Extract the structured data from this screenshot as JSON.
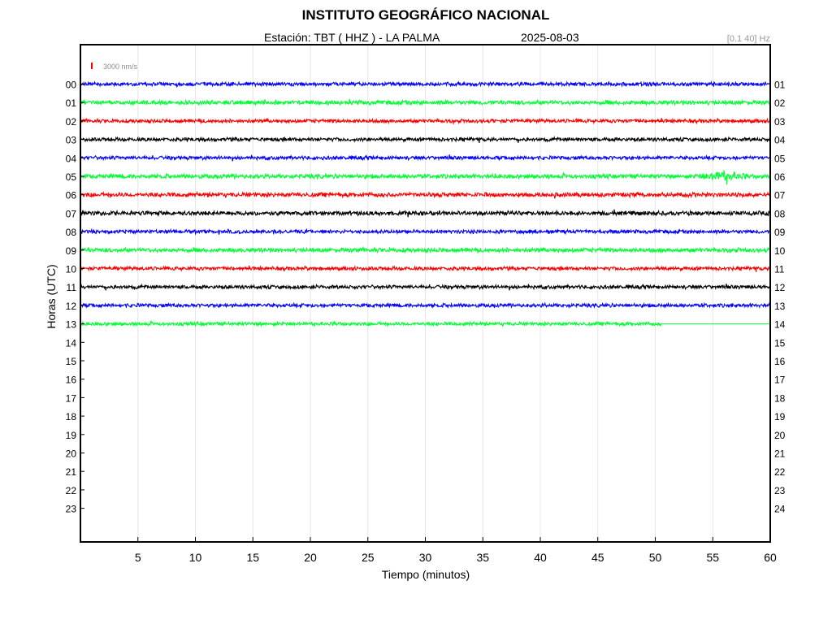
{
  "header": {
    "title": "INSTITUTO GEOGRÁFICO NACIONAL",
    "station": "Estación:  TBT ( HHZ ) - LA PALMA",
    "date": "2025-08-03",
    "filter": "[0.1 40] Hz"
  },
  "colors": {
    "blue": "#0000ff",
    "green": "#00ff33",
    "red": "#ff0000",
    "black": "#000000",
    "grid": "#e6e6e6",
    "scale_bar": "#ff0000"
  },
  "chart_data": {
    "type": "line",
    "chart_kind": "helicorder (seismogram, one trace per hour)",
    "xlabel": "Tiempo (minutos)",
    "ylabel": "Horas (UTC)",
    "xlim": [
      0,
      60
    ],
    "x_ticks": [
      5,
      10,
      15,
      20,
      25,
      30,
      35,
      40,
      45,
      50,
      55,
      60
    ],
    "grid": "vertical lines at each x tick",
    "scale_label": "3000 nm/s",
    "left_hour_labels": [
      "00",
      "01",
      "02",
      "03",
      "04",
      "05",
      "06",
      "07",
      "08",
      "09",
      "10",
      "11",
      "12",
      "13",
      "14",
      "15",
      "16",
      "17",
      "18",
      "19",
      "20",
      "21",
      "22",
      "23"
    ],
    "right_hour_labels": [
      "01",
      "02",
      "03",
      "04",
      "05",
      "06",
      "07",
      "08",
      "09",
      "10",
      "11",
      "12",
      "13",
      "14",
      "15",
      "16",
      "17",
      "18",
      "19",
      "20",
      "21",
      "22",
      "23",
      "24"
    ],
    "color_cycle": [
      "blue",
      "green",
      "red",
      "black"
    ],
    "traces": [
      {
        "hour": "00",
        "color": "blue",
        "amplitude": 2.5,
        "x_end": 60
      },
      {
        "hour": "01",
        "color": "green",
        "amplitude": 3.0,
        "x_end": 60
      },
      {
        "hour": "02",
        "color": "red",
        "amplitude": 2.5,
        "x_end": 60
      },
      {
        "hour": "03",
        "color": "black",
        "amplitude": 2.5,
        "x_end": 60
      },
      {
        "hour": "04",
        "color": "blue",
        "amplitude": 2.5,
        "x_end": 60
      },
      {
        "hour": "05",
        "color": "green",
        "amplitude": 3.0,
        "x_end": 60,
        "event_at_minute": 55.8
      },
      {
        "hour": "06",
        "color": "red",
        "amplitude": 3.0,
        "x_end": 60
      },
      {
        "hour": "07",
        "color": "black",
        "amplitude": 3.0,
        "x_end": 60
      },
      {
        "hour": "08",
        "color": "blue",
        "amplitude": 2.5,
        "x_end": 60
      },
      {
        "hour": "09",
        "color": "green",
        "amplitude": 3.0,
        "x_end": 60
      },
      {
        "hour": "10",
        "color": "red",
        "amplitude": 2.5,
        "x_end": 60
      },
      {
        "hour": "11",
        "color": "black",
        "amplitude": 2.5,
        "x_end": 60
      },
      {
        "hour": "12",
        "color": "blue",
        "amplitude": 2.5,
        "x_end": 60
      },
      {
        "hour": "13",
        "color": "green",
        "amplitude": 2.5,
        "x_end": 50.6
      }
    ]
  }
}
